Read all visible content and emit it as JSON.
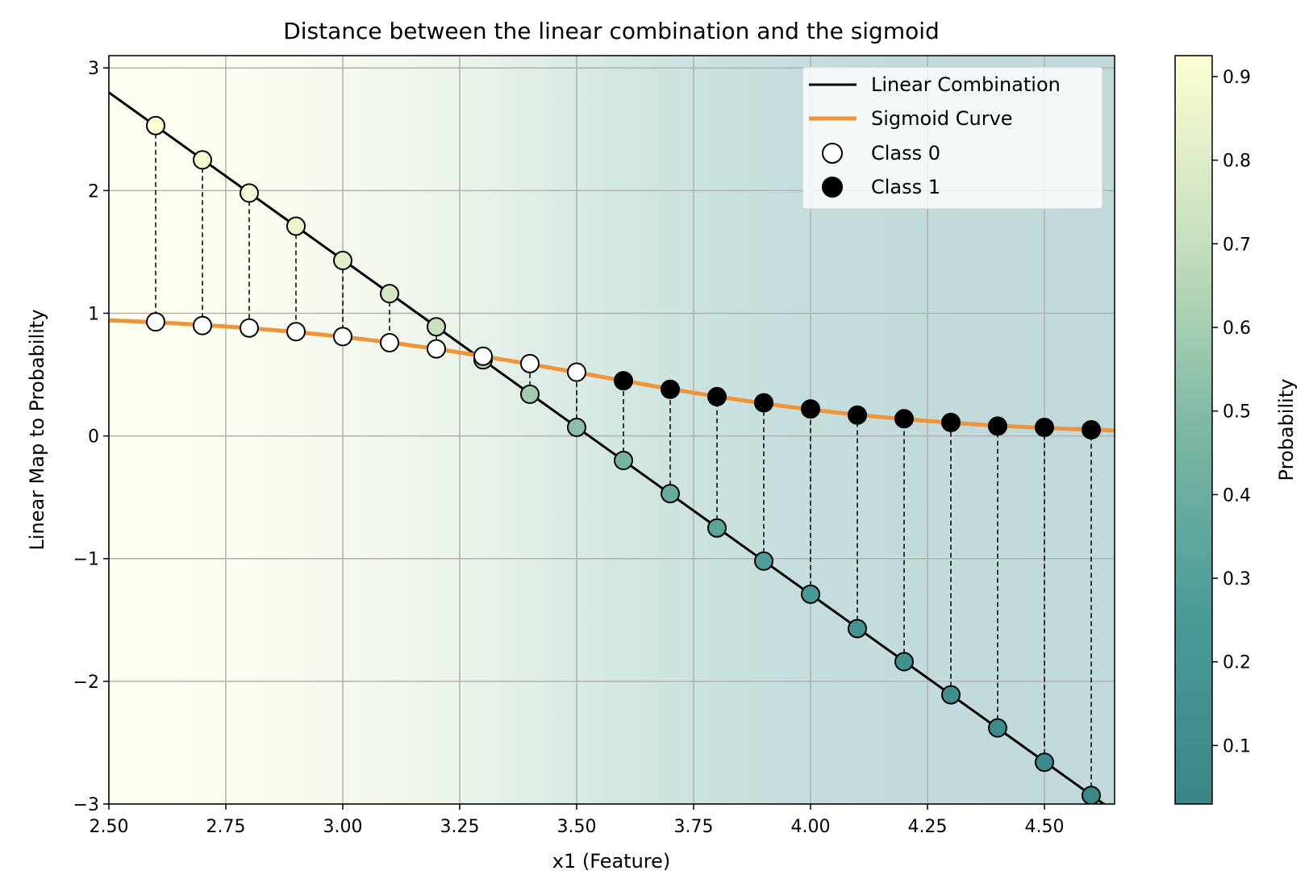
{
  "chart_data": {
    "type": "line",
    "title": "Distance between the linear combination and the sigmoid",
    "xlabel": "x1 (Feature)",
    "ylabel": "Linear Map to Probability",
    "xlim": [
      2.5,
      4.65
    ],
    "ylim": [
      -3,
      3.1
    ],
    "grid": true,
    "x_ticks": [
      "2.50",
      "2.75",
      "3.00",
      "3.25",
      "3.50",
      "3.75",
      "4.00",
      "4.25",
      "4.50"
    ],
    "y_ticks": [
      "3",
      "2",
      "1",
      "0",
      "−1",
      "−2",
      "−3"
    ],
    "linear_combination": {
      "slope": -2.727,
      "intercept": 9.617
    },
    "x": [
      2.6,
      2.7,
      2.8,
      2.9,
      3.0,
      3.1,
      3.2,
      3.3,
      3.4,
      3.5,
      3.6,
      3.7,
      3.8,
      3.9,
      4.0,
      4.1,
      4.2,
      4.3,
      4.4,
      4.5,
      4.6
    ],
    "class": [
      0,
      0,
      0,
      0,
      0,
      0,
      0,
      0,
      0,
      0,
      1,
      1,
      1,
      1,
      1,
      1,
      1,
      1,
      1,
      1,
      1
    ],
    "linear_values": [
      2.53,
      2.25,
      1.98,
      1.71,
      1.43,
      1.16,
      0.89,
      0.62,
      0.34,
      0.07,
      -0.2,
      -0.47,
      -0.75,
      -1.02,
      -1.29,
      -1.57,
      -1.84,
      -2.11,
      -2.38,
      -2.66,
      -2.93
    ],
    "sigmoid_values": [
      0.93,
      0.9,
      0.88,
      0.85,
      0.81,
      0.76,
      0.71,
      0.65,
      0.59,
      0.52,
      0.45,
      0.38,
      0.32,
      0.27,
      0.22,
      0.17,
      0.14,
      0.11,
      0.08,
      0.07,
      0.05
    ],
    "legend": {
      "position": "top-right",
      "entries": [
        "Linear Combination",
        "Sigmoid Curve",
        "Class 0",
        "Class 1"
      ]
    },
    "colorbar": {
      "label": "Probability",
      "range": [
        0.03,
        0.925
      ],
      "ticks": [
        "0.1",
        "0.2",
        "0.3",
        "0.4",
        "0.5",
        "0.6",
        "0.7",
        "0.8",
        "0.9"
      ],
      "colormap": [
        "#3a8689",
        "#4a9b97",
        "#7bb8a4",
        "#c6dfbd",
        "#fdfed3"
      ]
    },
    "colors": {
      "linear": "#000000",
      "sigmoid": "#f0943a",
      "grid": "#b0b0b0"
    }
  }
}
